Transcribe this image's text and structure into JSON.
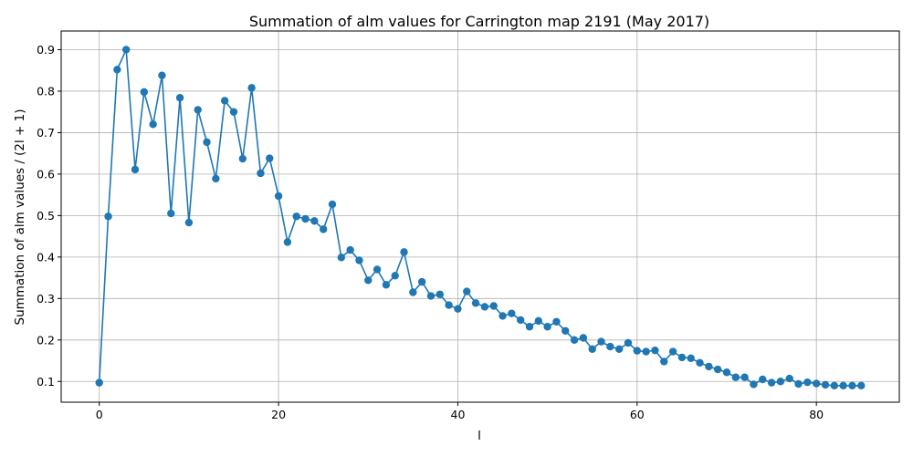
{
  "chart_data": {
    "type": "line",
    "title": "Summation of alm values for Carrington map 2191 (May 2017)",
    "xlabel": "l",
    "ylabel": "Summation of alm values / (2l + 1)",
    "xlim": [
      -4.25,
      89.25
    ],
    "ylim": [
      0.05,
      0.945
    ],
    "xticks": [
      0,
      20,
      40,
      60,
      80
    ],
    "yticks": [
      0.1,
      0.2,
      0.3,
      0.4,
      0.5,
      0.6,
      0.7,
      0.8,
      0.9
    ],
    "grid": true,
    "series_color": "#1f77b4",
    "marker": "circle",
    "x": [
      0,
      1,
      2,
      3,
      4,
      5,
      6,
      7,
      8,
      9,
      10,
      11,
      12,
      13,
      14,
      15,
      16,
      17,
      18,
      19,
      20,
      21,
      22,
      23,
      24,
      25,
      26,
      27,
      28,
      29,
      30,
      31,
      32,
      33,
      34,
      35,
      36,
      37,
      38,
      39,
      40,
      41,
      42,
      43,
      44,
      45,
      46,
      47,
      48,
      49,
      50,
      51,
      52,
      53,
      54,
      55,
      56,
      57,
      58,
      59,
      60,
      61,
      62,
      63,
      64,
      65,
      66,
      67,
      68,
      69,
      70,
      71,
      72,
      73,
      74,
      75,
      76,
      77,
      78,
      79,
      80,
      81,
      82,
      83,
      84,
      85
    ],
    "y": [
      0.097,
      0.498,
      0.852,
      0.9,
      0.611,
      0.798,
      0.72,
      0.838,
      0.505,
      0.784,
      0.483,
      0.755,
      0.677,
      0.589,
      0.777,
      0.75,
      0.637,
      0.808,
      0.602,
      0.638,
      0.547,
      0.436,
      0.498,
      0.492,
      0.487,
      0.467,
      0.527,
      0.399,
      0.417,
      0.392,
      0.344,
      0.37,
      0.333,
      0.355,
      0.412,
      0.315,
      0.34,
      0.306,
      0.31,
      0.284,
      0.275,
      0.317,
      0.289,
      0.28,
      0.282,
      0.258,
      0.264,
      0.248,
      0.232,
      0.246,
      0.232,
      0.244,
      0.222,
      0.2,
      0.205,
      0.178,
      0.196,
      0.184,
      0.178,
      0.193,
      0.174,
      0.172,
      0.175,
      0.148,
      0.172,
      0.158,
      0.156,
      0.145,
      0.136,
      0.129,
      0.122,
      0.11,
      0.11,
      0.093,
      0.105,
      0.097,
      0.1,
      0.107,
      0.094,
      0.098,
      0.095,
      0.092,
      0.09,
      0.09,
      0.09,
      0.09
    ]
  }
}
